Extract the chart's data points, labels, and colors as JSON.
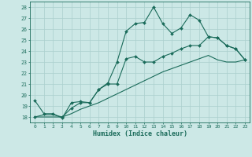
{
  "xlabel": "Humidex (Indice chaleur)",
  "bg_color": "#cce8e6",
  "grid_color": "#aacfcd",
  "line_color": "#1a6b5a",
  "xlim": [
    -0.5,
    23.5
  ],
  "ylim": [
    17.5,
    28.5
  ],
  "yticks": [
    18,
    19,
    20,
    21,
    22,
    23,
    24,
    25,
    26,
    27,
    28
  ],
  "xticks": [
    0,
    1,
    2,
    3,
    4,
    5,
    6,
    7,
    8,
    9,
    10,
    11,
    12,
    13,
    14,
    15,
    16,
    17,
    18,
    19,
    20,
    21,
    22,
    23
  ],
  "line1_x": [
    0,
    1,
    2,
    3,
    4,
    5,
    6,
    7,
    8,
    9,
    10,
    11,
    12,
    13,
    14,
    15,
    16,
    17,
    18,
    19,
    20,
    21,
    22,
    23
  ],
  "line1_y": [
    19.5,
    18.3,
    18.3,
    17.9,
    19.3,
    19.4,
    19.3,
    20.5,
    21.1,
    23.0,
    25.8,
    26.5,
    26.6,
    28.0,
    26.5,
    25.6,
    26.1,
    27.3,
    26.8,
    25.3,
    25.2,
    24.5,
    24.2,
    23.2
  ],
  "line2_x": [
    0,
    3,
    4,
    5,
    6,
    7,
    8,
    9,
    10,
    11,
    12,
    13,
    14,
    15,
    16,
    17,
    18,
    19,
    20,
    21,
    22,
    23
  ],
  "line2_y": [
    18.0,
    18.0,
    18.8,
    19.3,
    19.3,
    20.5,
    21.0,
    21.0,
    23.3,
    23.5,
    23.0,
    23.0,
    23.5,
    23.8,
    24.2,
    24.5,
    24.5,
    25.3,
    25.2,
    24.5,
    24.2,
    23.2
  ],
  "line3_x": [
    0,
    1,
    2,
    3,
    4,
    5,
    6,
    7,
    8,
    9,
    10,
    11,
    12,
    13,
    14,
    15,
    16,
    17,
    18,
    19,
    20,
    21,
    22,
    23
  ],
  "line3_y": [
    18.0,
    18.2,
    18.2,
    18.0,
    18.3,
    18.7,
    19.0,
    19.3,
    19.7,
    20.1,
    20.5,
    20.9,
    21.3,
    21.7,
    22.1,
    22.4,
    22.7,
    23.0,
    23.3,
    23.6,
    23.2,
    23.0,
    23.0,
    23.2
  ]
}
